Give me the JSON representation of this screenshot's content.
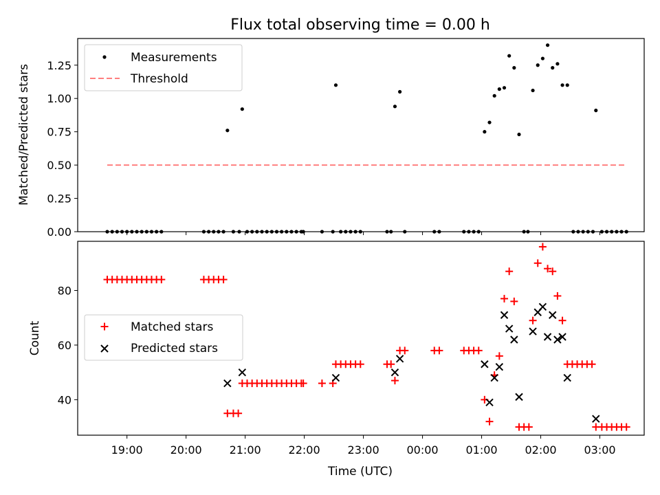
{
  "chart_data": [
    {
      "type": "scatter",
      "title": "Flux total observing time = 0.00 h",
      "ylabel": "Matched/Predicted stars",
      "xlabel": "",
      "ylim": [
        0,
        1.45
      ],
      "yticks": [
        0.0,
        0.25,
        0.5,
        0.75,
        1.0,
        1.25
      ],
      "ytick_labels": [
        "0.00",
        "0.25",
        "0.50",
        "0.75",
        "1.00",
        "1.25"
      ],
      "legend": {
        "position": "top-left",
        "entries": [
          "Measurements",
          "Threshold"
        ]
      },
      "colors": {
        "measurements": "#000000",
        "threshold": "#ff7f7f"
      },
      "threshold": {
        "value": 0.5,
        "x_range": [
          "18:40",
          "03:27"
        ]
      },
      "series": [
        {
          "name": "Measurements",
          "marker": "dot",
          "points": [
            [
              "18:40",
              0
            ],
            [
              "18:45",
              0
            ],
            [
              "18:50",
              0
            ],
            [
              "18:55",
              0
            ],
            [
              "19:00",
              0
            ],
            [
              "19:05",
              0
            ],
            [
              "19:10",
              0
            ],
            [
              "19:15",
              0
            ],
            [
              "19:20",
              0
            ],
            [
              "19:25",
              0
            ],
            [
              "19:30",
              0
            ],
            [
              "19:35",
              0
            ],
            [
              "20:18",
              0
            ],
            [
              "20:23",
              0
            ],
            [
              "20:28",
              0
            ],
            [
              "20:33",
              0
            ],
            [
              "20:38",
              0
            ],
            [
              "20:42",
              0.76
            ],
            [
              "20:48",
              0
            ],
            [
              "20:54",
              0
            ],
            [
              "20:57",
              0.92
            ],
            [
              "21:02",
              0
            ],
            [
              "21:07",
              0
            ],
            [
              "21:12",
              0
            ],
            [
              "21:17",
              0
            ],
            [
              "21:22",
              0
            ],
            [
              "21:27",
              0
            ],
            [
              "21:32",
              0
            ],
            [
              "21:37",
              0
            ],
            [
              "21:42",
              0
            ],
            [
              "21:47",
              0
            ],
            [
              "21:52",
              0
            ],
            [
              "21:57",
              0
            ],
            [
              "21:59",
              0
            ],
            [
              "22:18",
              0
            ],
            [
              "22:29",
              0
            ],
            [
              "22:32",
              1.1
            ],
            [
              "22:37",
              0
            ],
            [
              "22:42",
              0
            ],
            [
              "22:47",
              0
            ],
            [
              "22:52",
              0
            ],
            [
              "22:57",
              0
            ],
            [
              "23:24",
              0
            ],
            [
              "23:28",
              0
            ],
            [
              "23:32",
              0.94
            ],
            [
              "23:37",
              1.05
            ],
            [
              "23:42",
              0
            ],
            [
              "00:12",
              0
            ],
            [
              "00:17",
              0
            ],
            [
              "00:42",
              0
            ],
            [
              "00:47",
              0
            ],
            [
              "00:52",
              0
            ],
            [
              "00:57",
              0
            ],
            [
              "01:03",
              0.75
            ],
            [
              "01:08",
              0.82
            ],
            [
              "01:13",
              1.02
            ],
            [
              "01:18",
              1.07
            ],
            [
              "01:23",
              1.08
            ],
            [
              "01:28",
              1.32
            ],
            [
              "01:33",
              1.23
            ],
            [
              "01:38",
              0.73
            ],
            [
              "01:43",
              0
            ],
            [
              "01:47",
              0
            ],
            [
              "01:52",
              1.06
            ],
            [
              "01:57",
              1.25
            ],
            [
              "02:02",
              1.3
            ],
            [
              "02:07",
              1.4
            ],
            [
              "02:12",
              1.23
            ],
            [
              "02:17",
              1.26
            ],
            [
              "02:22",
              1.1
            ],
            [
              "02:27",
              1.1
            ],
            [
              "02:33",
              0
            ],
            [
              "02:38",
              0
            ],
            [
              "02:43",
              0
            ],
            [
              "02:48",
              0
            ],
            [
              "02:53",
              0
            ],
            [
              "02:56",
              0.91
            ],
            [
              "03:02",
              0
            ],
            [
              "03:07",
              0
            ],
            [
              "03:12",
              0
            ],
            [
              "03:17",
              0
            ],
            [
              "03:22",
              0
            ],
            [
              "03:27",
              0
            ]
          ]
        }
      ]
    },
    {
      "type": "scatter",
      "title": "",
      "ylabel": "Count",
      "xlabel": "Time (UTC)",
      "xlim": [
        "18:10",
        "03:45"
      ],
      "xticks": [
        "19:00",
        "20:00",
        "21:00",
        "22:00",
        "23:00",
        "00:00",
        "01:00",
        "02:00",
        "03:00"
      ],
      "ylim": [
        27,
        98
      ],
      "yticks": [
        40,
        60,
        80
      ],
      "legend": {
        "position": "center-left",
        "entries": [
          "Matched stars",
          "Predicted stars"
        ]
      },
      "colors": {
        "matched": "#ff0000",
        "predicted": "#000000"
      },
      "series": [
        {
          "name": "Matched stars",
          "marker": "plus",
          "points": [
            [
              "18:40",
              84
            ],
            [
              "18:45",
              84
            ],
            [
              "18:50",
              84
            ],
            [
              "18:55",
              84
            ],
            [
              "19:00",
              84
            ],
            [
              "19:05",
              84
            ],
            [
              "19:10",
              84
            ],
            [
              "19:15",
              84
            ],
            [
              "19:20",
              84
            ],
            [
              "19:25",
              84
            ],
            [
              "19:30",
              84
            ],
            [
              "19:35",
              84
            ],
            [
              "20:18",
              84
            ],
            [
              "20:23",
              84
            ],
            [
              "20:28",
              84
            ],
            [
              "20:33",
              84
            ],
            [
              "20:38",
              84
            ],
            [
              "20:42",
              35
            ],
            [
              "20:48",
              35
            ],
            [
              "20:53",
              35
            ],
            [
              "20:57",
              46
            ],
            [
              "21:02",
              46
            ],
            [
              "21:07",
              46
            ],
            [
              "21:12",
              46
            ],
            [
              "21:17",
              46
            ],
            [
              "21:22",
              46
            ],
            [
              "21:27",
              46
            ],
            [
              "21:32",
              46
            ],
            [
              "21:37",
              46
            ],
            [
              "21:42",
              46
            ],
            [
              "21:47",
              46
            ],
            [
              "21:52",
              46
            ],
            [
              "21:57",
              46
            ],
            [
              "21:59",
              46
            ],
            [
              "22:18",
              46
            ],
            [
              "22:29",
              46
            ],
            [
              "22:32",
              53
            ],
            [
              "22:37",
              53
            ],
            [
              "22:42",
              53
            ],
            [
              "22:47",
              53
            ],
            [
              "22:52",
              53
            ],
            [
              "22:57",
              53
            ],
            [
              "23:24",
              53
            ],
            [
              "23:28",
              53
            ],
            [
              "23:32",
              47
            ],
            [
              "23:37",
              58
            ],
            [
              "23:42",
              58
            ],
            [
              "00:12",
              58
            ],
            [
              "00:17",
              58
            ],
            [
              "00:42",
              58
            ],
            [
              "00:47",
              58
            ],
            [
              "00:52",
              58
            ],
            [
              "00:57",
              58
            ],
            [
              "01:03",
              40
            ],
            [
              "01:08",
              32
            ],
            [
              "01:13",
              49
            ],
            [
              "01:18",
              56
            ],
            [
              "01:23",
              77
            ],
            [
              "01:28",
              87
            ],
            [
              "01:33",
              76
            ],
            [
              "01:38",
              30
            ],
            [
              "01:43",
              30
            ],
            [
              "01:48",
              30
            ],
            [
              "01:52",
              69
            ],
            [
              "01:57",
              90
            ],
            [
              "02:02",
              96
            ],
            [
              "02:07",
              88
            ],
            [
              "02:12",
              87
            ],
            [
              "02:17",
              78
            ],
            [
              "02:22",
              69
            ],
            [
              "02:27",
              53
            ],
            [
              "02:32",
              53
            ],
            [
              "02:37",
              53
            ],
            [
              "02:42",
              53
            ],
            [
              "02:47",
              53
            ],
            [
              "02:52",
              53
            ],
            [
              "02:56",
              30
            ],
            [
              "03:02",
              30
            ],
            [
              "03:07",
              30
            ],
            [
              "03:12",
              30
            ],
            [
              "03:17",
              30
            ],
            [
              "03:22",
              30
            ],
            [
              "03:27",
              30
            ]
          ]
        },
        {
          "name": "Predicted stars",
          "marker": "x",
          "points": [
            [
              "20:42",
              46
            ],
            [
              "20:57",
              50
            ],
            [
              "22:32",
              48
            ],
            [
              "23:32",
              50
            ],
            [
              "23:37",
              55
            ],
            [
              "01:03",
              53
            ],
            [
              "01:08",
              39
            ],
            [
              "01:13",
              48
            ],
            [
              "01:18",
              52
            ],
            [
              "01:23",
              71
            ],
            [
              "01:28",
              66
            ],
            [
              "01:33",
              62
            ],
            [
              "01:38",
              41
            ],
            [
              "01:52",
              65
            ],
            [
              "01:57",
              72
            ],
            [
              "02:02",
              74
            ],
            [
              "02:07",
              63
            ],
            [
              "02:12",
              71
            ],
            [
              "02:17",
              62
            ],
            [
              "02:22",
              63
            ],
            [
              "02:27",
              48
            ],
            [
              "02:56",
              33
            ]
          ]
        }
      ]
    }
  ]
}
